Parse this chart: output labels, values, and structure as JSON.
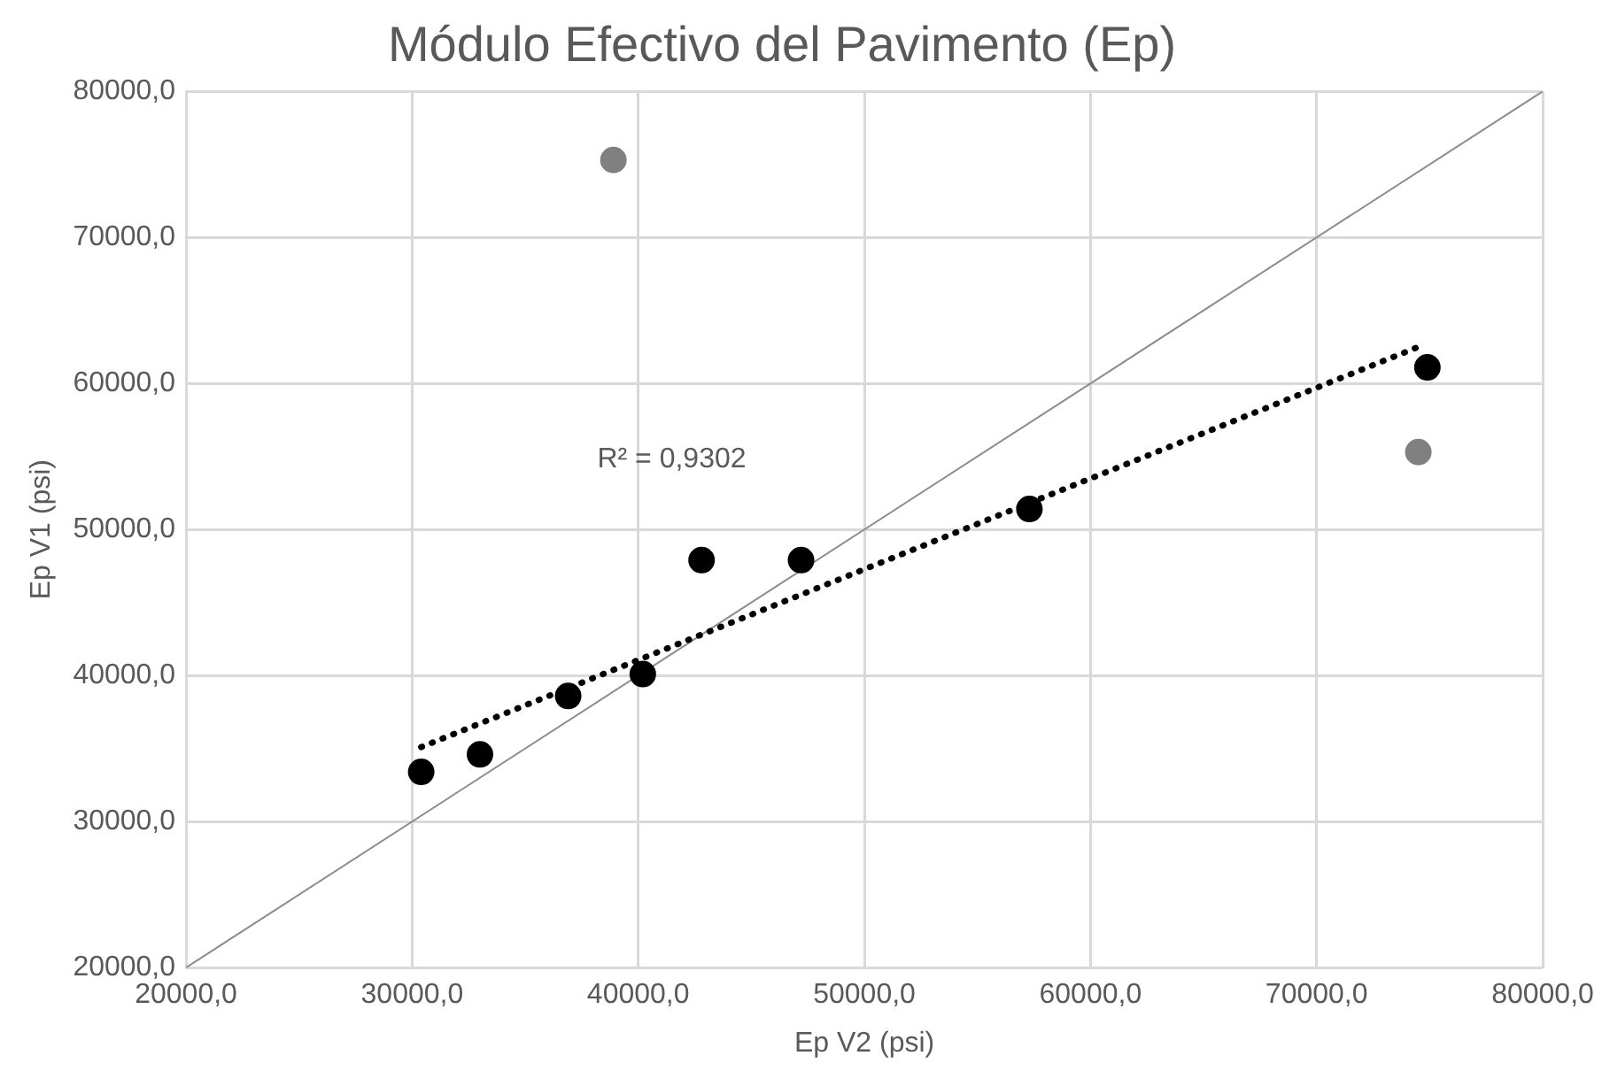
{
  "chart_data": {
    "type": "scatter",
    "title": "Módulo Efectivo del Pavimento (Ep)",
    "xlabel": "Ep V2 (psi)",
    "ylabel": "Ep V1 (psi)",
    "xlim": [
      20000,
      80000
    ],
    "ylim": [
      20000,
      80000
    ],
    "xticks": [
      {
        "value": 20000,
        "label": "20000,0"
      },
      {
        "value": 30000,
        "label": "30000,0"
      },
      {
        "value": 40000,
        "label": "40000,0"
      },
      {
        "value": 50000,
        "label": "50000,0"
      },
      {
        "value": 60000,
        "label": "60000,0"
      },
      {
        "value": 70000,
        "label": "70000,0"
      },
      {
        "value": 80000,
        "label": "80000,0"
      }
    ],
    "yticks": [
      {
        "value": 20000,
        "label": "20000,0"
      },
      {
        "value": 30000,
        "label": "30000,0"
      },
      {
        "value": 40000,
        "label": "40000,0"
      },
      {
        "value": 50000,
        "label": "50000,0"
      },
      {
        "value": 60000,
        "label": "60000,0"
      },
      {
        "value": 70000,
        "label": "70000,0"
      },
      {
        "value": 80000,
        "label": "80000,0"
      }
    ],
    "grid": true,
    "legend": false,
    "marker": "circle",
    "series": [
      {
        "type": "line",
        "color": "#8c8c8c",
        "x": [
          20000,
          80000
        ],
        "values": [
          20000,
          80000
        ],
        "line_style": "solid",
        "marker": "none"
      },
      {
        "color": "#000000",
        "x": [
          30400,
          33000,
          36900,
          40200,
          42800,
          47200,
          57300,
          74900
        ],
        "values": [
          33400,
          34600,
          38600,
          40100,
          47900,
          47900,
          51400,
          61100
        ]
      },
      {
        "color": "#808080",
        "x": [
          38900,
          74500
        ],
        "values": [
          75300,
          55300
        ]
      },
      {
        "type": "line",
        "color": "#000000",
        "x": [
          30400,
          74500
        ],
        "values": [
          35100,
          62500
        ],
        "line_style": "dotted",
        "marker": "none"
      }
    ],
    "annotations": [
      "R² = 0,9302"
    ]
  }
}
